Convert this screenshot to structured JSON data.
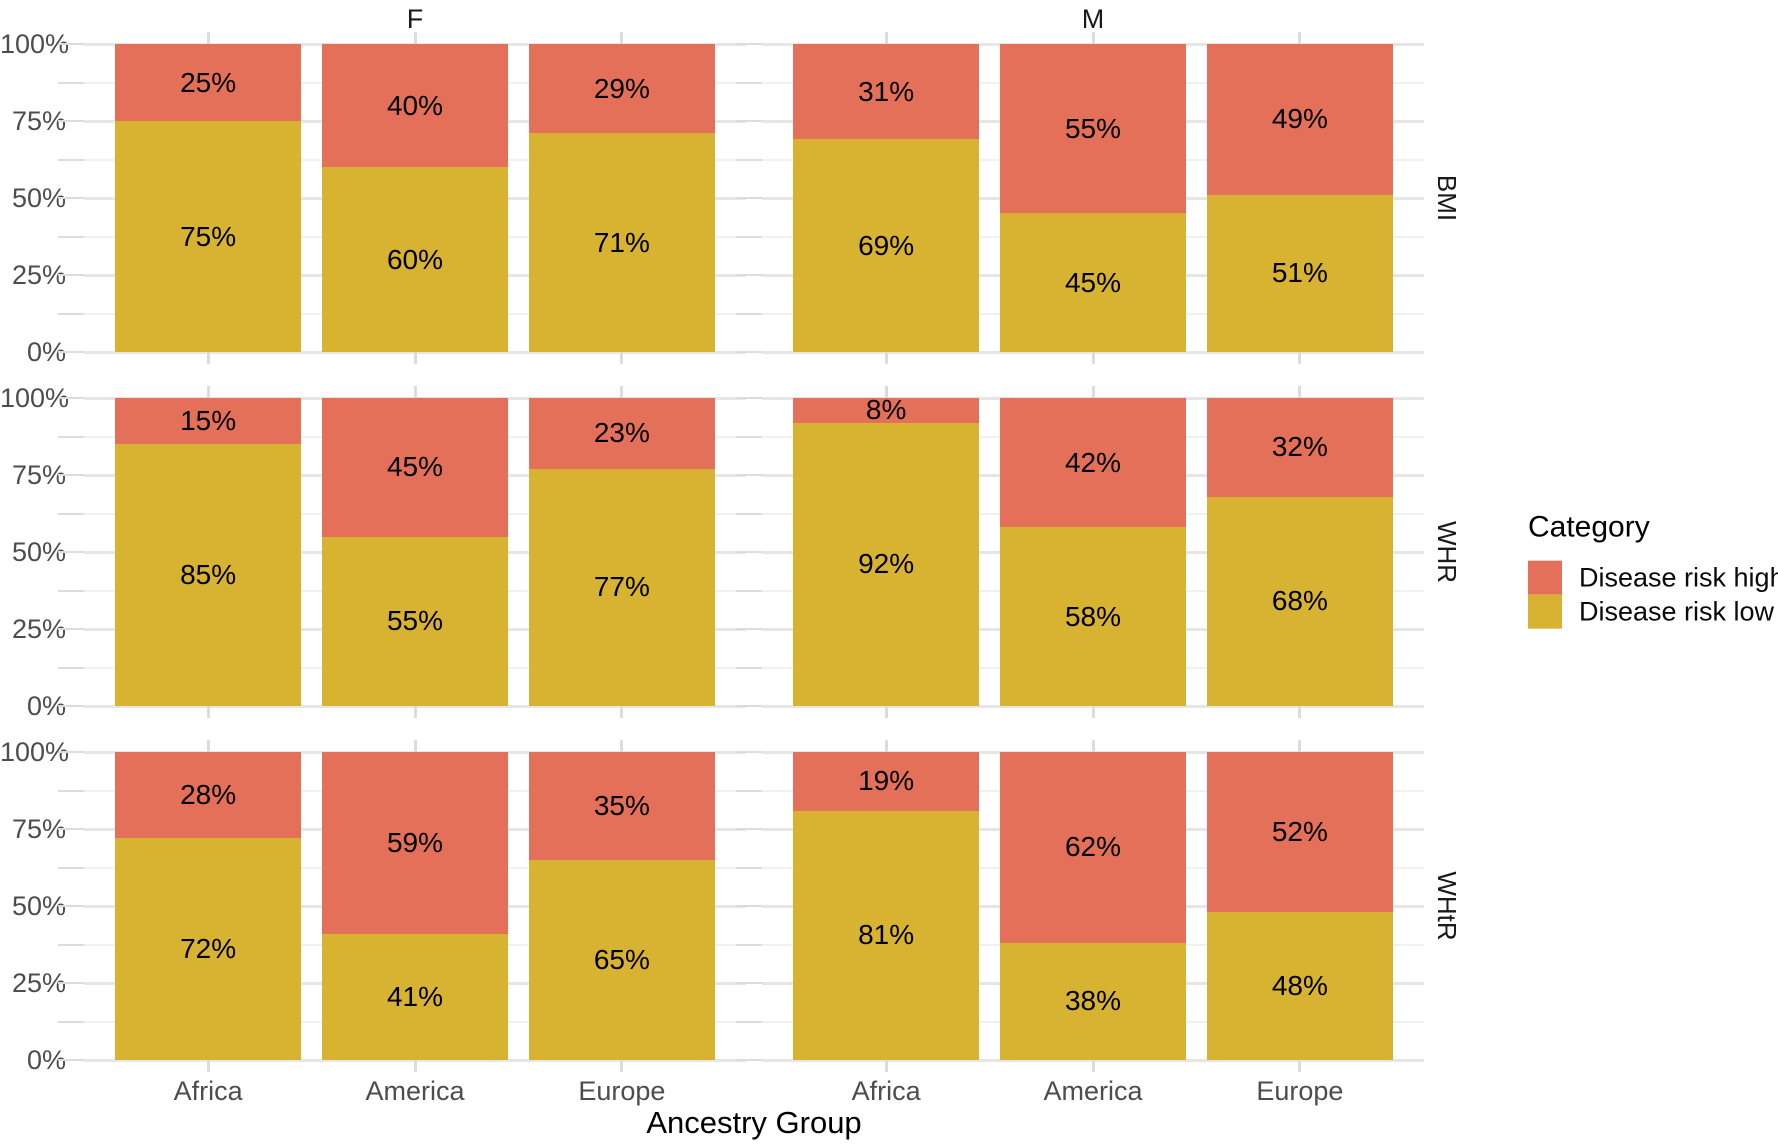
{
  "chart_data": {
    "type": "bar",
    "stacked": true,
    "unit": "percent",
    "title": "",
    "xlabel": "Ancestry Group",
    "ylabel": "",
    "ylim": [
      0,
      100
    ],
    "y_ticks": [
      "0%",
      "25%",
      "50%",
      "75%",
      "100%"
    ],
    "grid": {
      "major_every": 25,
      "minor_every": 12.5,
      "grid_on": true
    },
    "categories": [
      "Africa",
      "America",
      "Europe"
    ],
    "facet_cols": [
      "F",
      "M"
    ],
    "facet_rows": [
      "BMI",
      "WHR",
      "WHtR"
    ],
    "legend": {
      "title": "Category",
      "position": "right",
      "entries": [
        {
          "label": "Disease risk high",
          "color": "#E4705A"
        },
        {
          "label": "Disease risk low",
          "color": "#D8B231"
        }
      ]
    },
    "panels": [
      {
        "facet_row": "BMI",
        "facet_col": "F",
        "bars": [
          {
            "category": "Africa",
            "high": "25%",
            "low": "75%"
          },
          {
            "category": "America",
            "high": "40%",
            "low": "60%"
          },
          {
            "category": "Europe",
            "high": "29%",
            "low": "71%"
          }
        ]
      },
      {
        "facet_row": "BMI",
        "facet_col": "M",
        "bars": [
          {
            "category": "Africa",
            "high": "31%",
            "low": "69%"
          },
          {
            "category": "America",
            "high": "55%",
            "low": "45%"
          },
          {
            "category": "Europe",
            "high": "49%",
            "low": "51%"
          }
        ]
      },
      {
        "facet_row": "WHR",
        "facet_col": "F",
        "bars": [
          {
            "category": "Africa",
            "high": "15%",
            "low": "85%"
          },
          {
            "category": "America",
            "high": "45%",
            "low": "55%"
          },
          {
            "category": "Europe",
            "high": "23%",
            "low": "77%"
          }
        ]
      },
      {
        "facet_row": "WHR",
        "facet_col": "M",
        "bars": [
          {
            "category": "Africa",
            "high": "8%",
            "low": "92%"
          },
          {
            "category": "America",
            "high": "42%",
            "low": "58%"
          },
          {
            "category": "Europe",
            "high": "32%",
            "low": "68%"
          }
        ]
      },
      {
        "facet_row": "WHtR",
        "facet_col": "F",
        "bars": [
          {
            "category": "Africa",
            "high": "28%",
            "low": "72%"
          },
          {
            "category": "America",
            "high": "59%",
            "low": "41%"
          },
          {
            "category": "Europe",
            "high": "35%",
            "low": "65%"
          }
        ]
      },
      {
        "facet_row": "WHtR",
        "facet_col": "M",
        "bars": [
          {
            "category": "Africa",
            "high": "19%",
            "low": "81%"
          },
          {
            "category": "America",
            "high": "62%",
            "low": "38%"
          },
          {
            "category": "Europe",
            "high": "52%",
            "low": "48%"
          }
        ]
      }
    ]
  }
}
